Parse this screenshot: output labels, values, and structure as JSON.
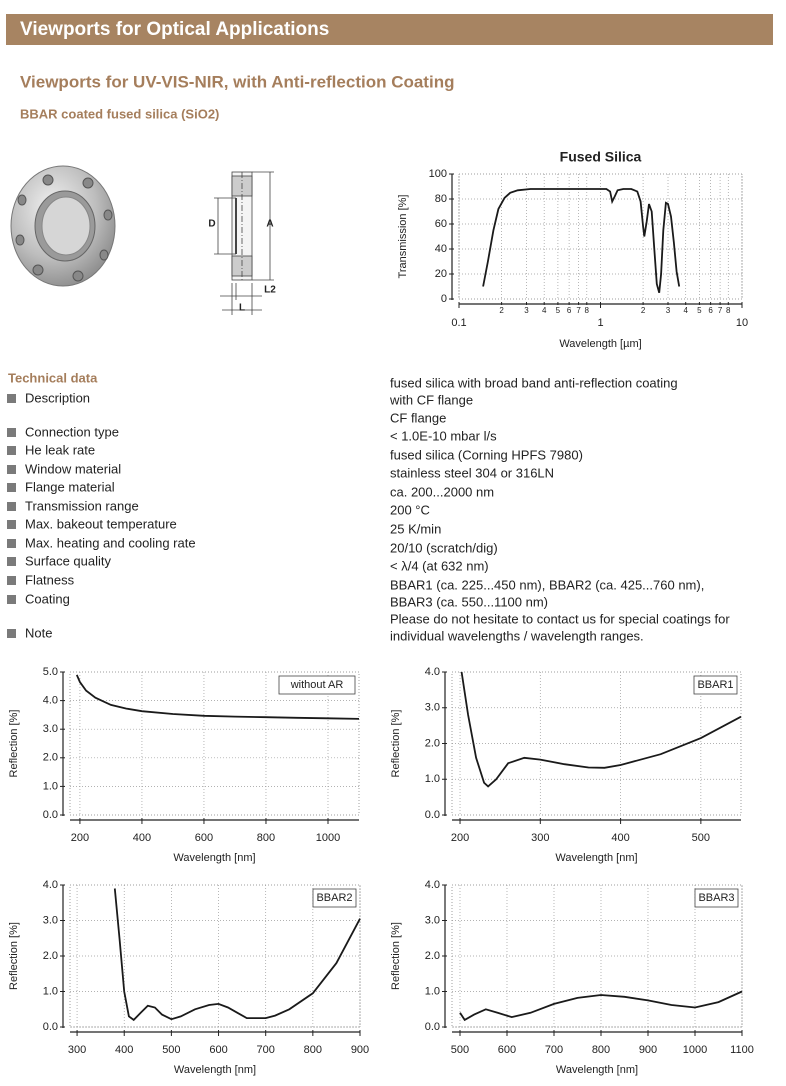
{
  "header": {
    "title": "Viewports for Optical Applications"
  },
  "section": {
    "title": "Viewports for UV-VIS-NIR, with Anti-reflection Coating",
    "subtitle": "BBAR coated fused silica (SiO2)"
  },
  "drawing_labels": [
    "D",
    "A",
    "L2",
    "L"
  ],
  "technical_data": {
    "title": "Technical data",
    "rows": [
      {
        "label": "Description",
        "value": [
          "fused silica with broad band anti-reflection coating",
          "with CF flange"
        ]
      },
      {
        "label": "Connection type",
        "value": [
          "CF flange"
        ]
      },
      {
        "label": "He leak rate",
        "value": [
          "< 1.0E-10 mbar l/s"
        ]
      },
      {
        "label": "Window material",
        "value": [
          "fused silica (Corning HPFS 7980)"
        ]
      },
      {
        "label": "Flange material",
        "value": [
          "stainless steel 304 or 316LN"
        ]
      },
      {
        "label": "Transmission range",
        "value": [
          "ca. 200...2000 nm"
        ]
      },
      {
        "label": "Max. bakeout temperature",
        "value": [
          "200 °C"
        ]
      },
      {
        "label": "Max. heating and cooling rate",
        "value": [
          "25 K/min"
        ]
      },
      {
        "label": "Surface quality",
        "value": [
          "20/10 (scratch/dig)"
        ]
      },
      {
        "label": "Flatness",
        "value": [
          "< λ/4 (at 632 nm)"
        ]
      },
      {
        "label": "Coating",
        "value": [
          "BBAR1 (ca. 225...450 nm), BBAR2 (ca. 425...760 nm),",
          "BBAR3 (ca. 550...1100 nm)"
        ]
      },
      {
        "label": "Note",
        "value": [
          "Please do not hesitate to contact us for special coatings for",
          "individual wavelengths / wavelength ranges."
        ]
      }
    ]
  },
  "chart_data": [
    {
      "type": "line",
      "title": "Fused Silica",
      "x_label": "Wavelength [µm]",
      "y_label": "Transmission [%]",
      "log_x": true,
      "grid": true,
      "color": "#1a1a1a",
      "xlim": [
        0.1,
        10
      ],
      "ylim": [
        0,
        100
      ],
      "xticks": [
        0.1,
        {
          "value": 0.2,
          "label": "2"
        },
        {
          "value": 0.3,
          "label": "3"
        },
        {
          "value": 0.4,
          "label": "4"
        },
        {
          "value": 0.5,
          "label": "5"
        },
        {
          "value": 0.6,
          "label": "6"
        },
        {
          "value": 0.7,
          "label": "7"
        },
        {
          "value": 0.8,
          "label": "8"
        },
        1,
        2,
        3,
        4,
        5,
        6,
        7,
        8,
        10
      ],
      "yticks": [
        0,
        20,
        40,
        60,
        80,
        100
      ],
      "x": [
        0.148,
        0.16,
        0.175,
        0.19,
        0.21,
        0.23,
        0.26,
        0.32,
        0.5,
        0.8,
        1.1,
        1.17,
        1.21,
        1.26,
        1.32,
        1.45,
        1.65,
        1.82,
        1.92,
        2.0,
        2.04,
        2.12,
        2.2,
        2.3,
        2.4,
        2.5,
        2.6,
        2.68,
        2.78,
        2.9,
        3.0,
        3.15,
        3.3,
        3.45,
        3.6
      ],
      "values": [
        10,
        30,
        55,
        72,
        81,
        85,
        87,
        88,
        88,
        88,
        88,
        86,
        78,
        82,
        87,
        88,
        88,
        86,
        78,
        58,
        50,
        62,
        76,
        70,
        40,
        12,
        5,
        20,
        55,
        77,
        76,
        66,
        45,
        22,
        10
      ]
    },
    {
      "type": "line",
      "label": "without AR",
      "x_label": "Wavelength [nm]",
      "y_label": "Reflection [%]",
      "grid": true,
      "color": "#1a1a1a",
      "xlim": [
        168,
        1100
      ],
      "ylim": [
        0,
        5
      ],
      "xticks": [
        200,
        400,
        600,
        800,
        1000
      ],
      "yticks": [
        {
          "value": 0,
          "label": "0.0"
        },
        {
          "value": 1,
          "label": "1.0"
        },
        {
          "value": 2,
          "label": "2.0"
        },
        {
          "value": 3,
          "label": "3.0"
        },
        {
          "value": 4,
          "label": "4.0"
        },
        {
          "value": 5,
          "label": "5.0"
        }
      ],
      "x": [
        190,
        200,
        220,
        250,
        300,
        350,
        400,
        500,
        600,
        700,
        800,
        900,
        1000,
        1100
      ],
      "values": [
        4.9,
        4.65,
        4.35,
        4.1,
        3.85,
        3.72,
        3.63,
        3.53,
        3.47,
        3.44,
        3.42,
        3.4,
        3.38,
        3.36
      ]
    },
    {
      "type": "line",
      "label": "BBAR1",
      "x_label": "Wavelength [nm]",
      "y_label": "Reflection [%]",
      "grid": true,
      "color": "#1a1a1a",
      "xlim": [
        190,
        550
      ],
      "ylim": [
        0,
        4
      ],
      "xticks": [
        200,
        300,
        400,
        500
      ],
      "yticks": [
        {
          "value": 0,
          "label": "0.0"
        },
        {
          "value": 1,
          "label": "1.0"
        },
        {
          "value": 2,
          "label": "2.0"
        },
        {
          "value": 3,
          "label": "3.0"
        },
        {
          "value": 4,
          "label": "4.0"
        }
      ],
      "x": [
        202,
        210,
        220,
        230,
        235,
        245,
        260,
        280,
        300,
        330,
        360,
        380,
        400,
        450,
        500,
        550
      ],
      "values": [
        4.0,
        2.8,
        1.6,
        0.9,
        0.8,
        1.0,
        1.45,
        1.6,
        1.55,
        1.42,
        1.33,
        1.32,
        1.4,
        1.7,
        2.15,
        2.75
      ]
    },
    {
      "type": "line",
      "label": "BBAR2",
      "x_label": "Wavelength [nm]",
      "y_label": "Reflection [%]",
      "grid": true,
      "color": "#1a1a1a",
      "xlim": [
        285,
        900
      ],
      "ylim": [
        0,
        4
      ],
      "xticks": [
        300,
        400,
        500,
        600,
        700,
        800,
        900
      ],
      "yticks": [
        {
          "value": 0,
          "label": "0.0"
        },
        {
          "value": 1,
          "label": "1.0"
        },
        {
          "value": 2,
          "label": "2.0"
        },
        {
          "value": 3,
          "label": "3.0"
        },
        {
          "value": 4,
          "label": "4.0"
        }
      ],
      "x": [
        380,
        390,
        400,
        410,
        420,
        435,
        450,
        465,
        480,
        500,
        520,
        550,
        580,
        600,
        620,
        640,
        660,
        700,
        720,
        750,
        800,
        850,
        900
      ],
      "values": [
        3.9,
        2.5,
        1.0,
        0.3,
        0.2,
        0.4,
        0.6,
        0.55,
        0.35,
        0.22,
        0.3,
        0.5,
        0.62,
        0.65,
        0.55,
        0.4,
        0.25,
        0.25,
        0.32,
        0.5,
        0.95,
        1.8,
        3.05
      ]
    },
    {
      "type": "line",
      "label": "BBAR3",
      "x_label": "Wavelength [nm]",
      "y_label": "Reflection [%]",
      "grid": true,
      "color": "#1a1a1a",
      "xlim": [
        483,
        1100
      ],
      "ylim": [
        0,
        4
      ],
      "xticks": [
        500,
        600,
        700,
        800,
        900,
        1000,
        1100
      ],
      "yticks": [
        {
          "value": 0,
          "label": "0.0"
        },
        {
          "value": 1,
          "label": "1.0"
        },
        {
          "value": 2,
          "label": "2.0"
        },
        {
          "value": 3,
          "label": "3.0"
        },
        {
          "value": 4,
          "label": "4.0"
        }
      ],
      "x": [
        500,
        510,
        530,
        555,
        580,
        610,
        650,
        700,
        750,
        800,
        850,
        900,
        950,
        1000,
        1050,
        1100
      ],
      "values": [
        0.4,
        0.2,
        0.35,
        0.5,
        0.4,
        0.28,
        0.4,
        0.65,
        0.82,
        0.9,
        0.85,
        0.75,
        0.62,
        0.55,
        0.7,
        1.0
      ]
    }
  ]
}
